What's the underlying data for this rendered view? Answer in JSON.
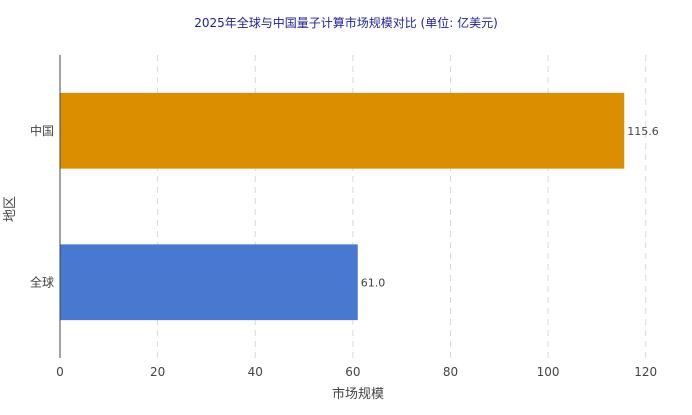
{
  "chart_data": {
    "type": "bar",
    "orientation": "horizontal",
    "title": "2025年全球与中国量子计算市场规模对比 (单位: 亿美元)",
    "xlabel": "市场规模",
    "ylabel": "地区",
    "categories": [
      "中国",
      "全球"
    ],
    "values": [
      115.6,
      61.0
    ],
    "value_labels": [
      "115.6",
      "61.0"
    ],
    "colors": [
      "#da8e00",
      "#4878cf"
    ],
    "xlim": [
      0,
      122
    ],
    "xticks": [
      0,
      20,
      40,
      60,
      80,
      100,
      120
    ],
    "grid": true,
    "legend": "none"
  }
}
